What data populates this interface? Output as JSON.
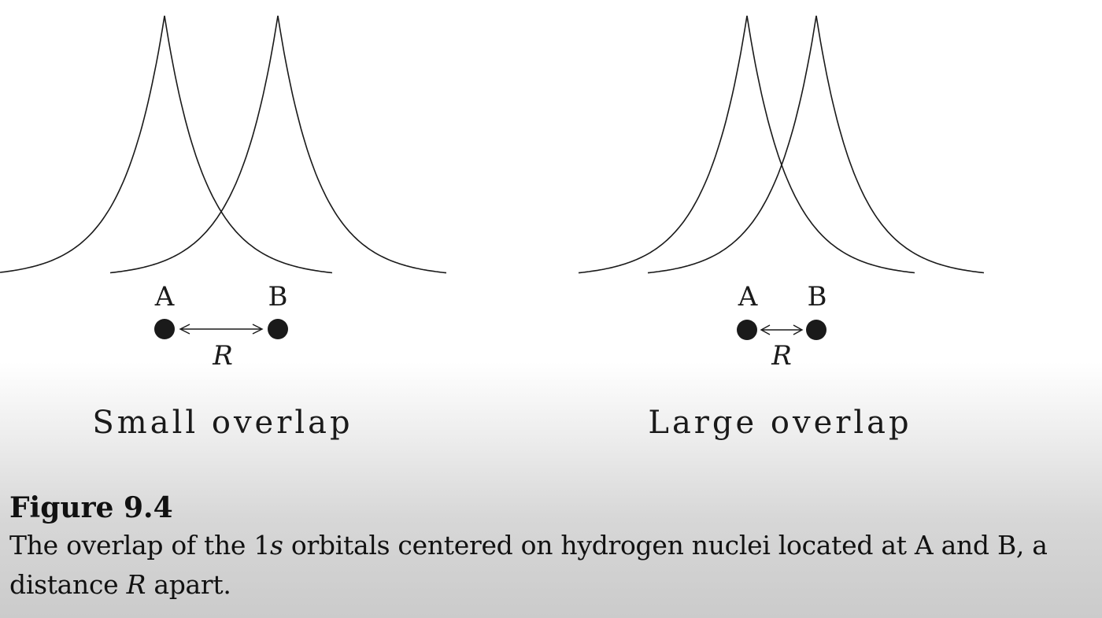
{
  "panels": [
    {
      "title": "Small overlap",
      "label_a": "A",
      "label_b": "B",
      "distance_label": "R"
    },
    {
      "title": "Large overlap",
      "label_a": "A",
      "label_b": "B",
      "distance_label": "R"
    }
  ],
  "caption": {
    "title": "Figure 9.4",
    "text_1": "The overlap of the 1",
    "text_italic_1": "s",
    "text_2": " orbitals centered on hydrogen nuclei located at A and B, a distance ",
    "text_italic_2": "R",
    "text_3": " apart."
  }
}
